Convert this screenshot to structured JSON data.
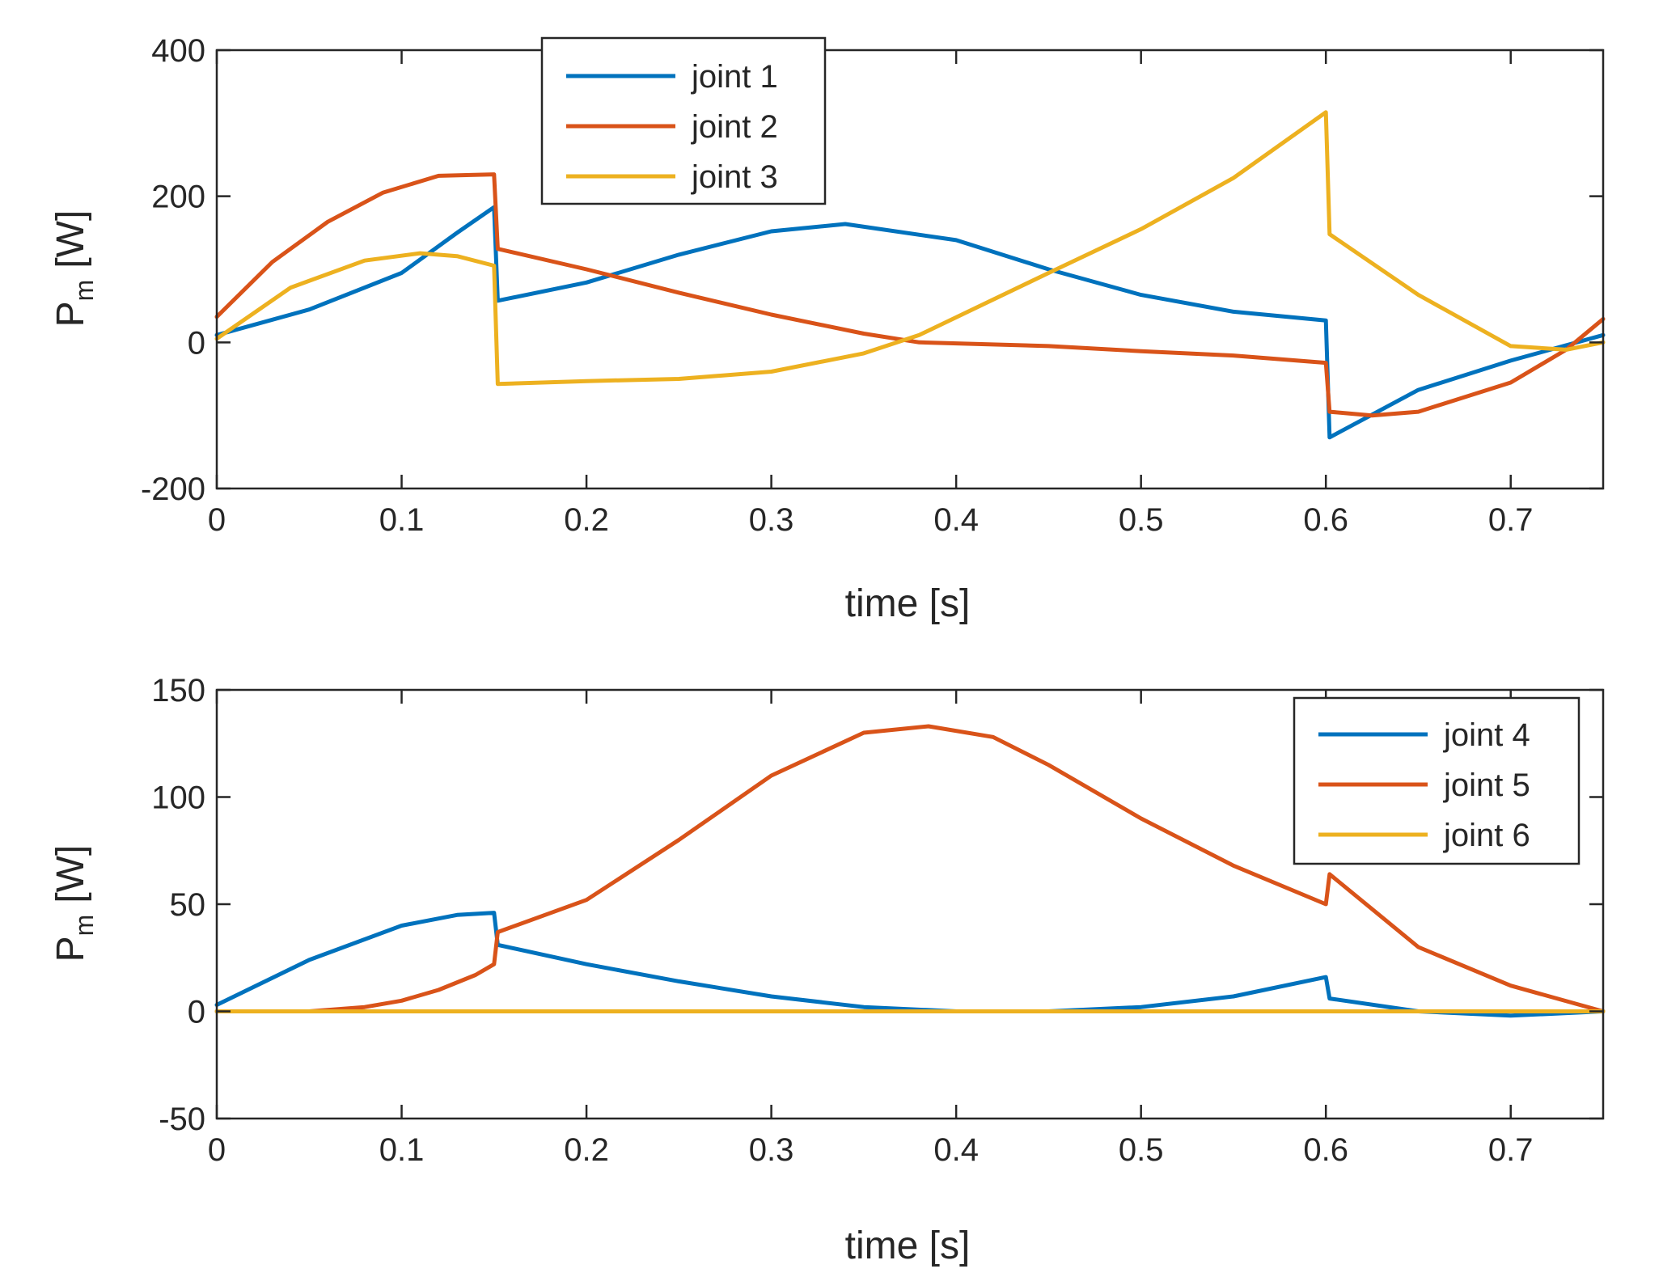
{
  "colors": {
    "blue": "#0072BD",
    "orange": "#D95319",
    "yellow": "#EDB120",
    "axis": "#262626"
  },
  "chart_data": [
    {
      "type": "line",
      "xlabel": "time  [s]",
      "ylabel_main": "P",
      "ylabel_sub": "m",
      "ylabel_unit": "[W]",
      "xlim": [
        0,
        0.75
      ],
      "ylim": [
        -200,
        400
      ],
      "xticks": [
        0,
        0.1,
        0.2,
        0.3,
        0.4,
        0.5,
        0.6,
        0.7
      ],
      "xtick_labels": [
        "0",
        "0.1",
        "0.2",
        "0.3",
        "0.4",
        "0.5",
        "0.6",
        "0.7"
      ],
      "yticks": [
        -200,
        0,
        200,
        400
      ],
      "ytick_labels": [
        "-200",
        "0",
        "200",
        "400"
      ],
      "legend_position": "top-left",
      "series": [
        {
          "name": "joint 1",
          "color": "#0072BD",
          "x": [
            0,
            0.05,
            0.1,
            0.13,
            0.15,
            0.152,
            0.2,
            0.25,
            0.3,
            0.34,
            0.4,
            0.45,
            0.5,
            0.55,
            0.6,
            0.602,
            0.65,
            0.7,
            0.75
          ],
          "y": [
            10,
            45,
            95,
            150,
            185,
            57,
            82,
            120,
            152,
            162,
            140,
            100,
            65,
            42,
            30,
            -130,
            -65,
            -25,
            10
          ]
        },
        {
          "name": "joint 2",
          "color": "#D95319",
          "x": [
            0,
            0.03,
            0.06,
            0.09,
            0.12,
            0.15,
            0.152,
            0.2,
            0.25,
            0.3,
            0.35,
            0.38,
            0.45,
            0.5,
            0.55,
            0.6,
            0.602,
            0.625,
            0.65,
            0.7,
            0.73,
            0.75
          ],
          "y": [
            35,
            110,
            165,
            205,
            228,
            230,
            128,
            100,
            68,
            38,
            12,
            0,
            -5,
            -12,
            -18,
            -28,
            -95,
            -100,
            -95,
            -55,
            -10,
            32
          ]
        },
        {
          "name": "joint 3",
          "color": "#EDB120",
          "x": [
            0,
            0.04,
            0.08,
            0.11,
            0.13,
            0.15,
            0.152,
            0.2,
            0.25,
            0.3,
            0.35,
            0.38,
            0.45,
            0.5,
            0.55,
            0.6,
            0.602,
            0.65,
            0.7,
            0.73,
            0.75
          ],
          "y": [
            5,
            75,
            112,
            122,
            118,
            105,
            -57,
            -53,
            -50,
            -40,
            -15,
            10,
            95,
            155,
            225,
            315,
            148,
            65,
            -5,
            -10,
            0
          ]
        }
      ]
    },
    {
      "type": "line",
      "xlabel": "time  [s]",
      "ylabel_main": "P",
      "ylabel_sub": "m",
      "ylabel_unit": "[W]",
      "xlim": [
        0,
        0.75
      ],
      "ylim": [
        -50,
        150
      ],
      "xticks": [
        0,
        0.1,
        0.2,
        0.3,
        0.4,
        0.5,
        0.6,
        0.7
      ],
      "xtick_labels": [
        "0",
        "0.1",
        "0.2",
        "0.3",
        "0.4",
        "0.5",
        "0.6",
        "0.7"
      ],
      "yticks": [
        -50,
        0,
        50,
        100,
        150
      ],
      "ytick_labels": [
        "-50",
        "0",
        "50",
        "100",
        "150"
      ],
      "legend_position": "top-right",
      "series": [
        {
          "name": "joint 4",
          "color": "#0072BD",
          "x": [
            0,
            0.05,
            0.1,
            0.13,
            0.15,
            0.152,
            0.2,
            0.25,
            0.3,
            0.35,
            0.4,
            0.45,
            0.5,
            0.55,
            0.6,
            0.602,
            0.65,
            0.7,
            0.75
          ],
          "y": [
            3,
            24,
            40,
            45,
            46,
            31,
            22,
            14,
            7,
            2,
            0,
            0,
            2,
            7,
            16,
            6,
            0,
            -2,
            0
          ]
        },
        {
          "name": "joint 5",
          "color": "#D95319",
          "x": [
            0,
            0.05,
            0.08,
            0.1,
            0.12,
            0.14,
            0.15,
            0.152,
            0.2,
            0.25,
            0.3,
            0.35,
            0.385,
            0.42,
            0.45,
            0.5,
            0.55,
            0.6,
            0.602,
            0.65,
            0.7,
            0.75
          ],
          "y": [
            0,
            0,
            2,
            5,
            10,
            17,
            22,
            37,
            52,
            80,
            110,
            130,
            133,
            128,
            115,
            90,
            68,
            50,
            64,
            30,
            12,
            0
          ]
        },
        {
          "name": "joint 6",
          "color": "#EDB120",
          "x": [
            0,
            0.75
          ],
          "y": [
            0,
            0
          ]
        }
      ]
    }
  ]
}
